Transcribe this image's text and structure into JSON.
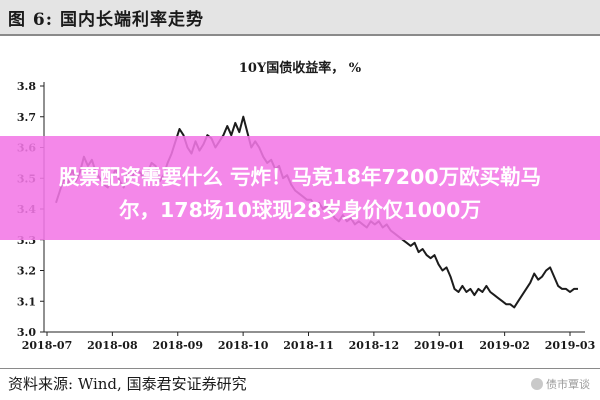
{
  "header": {
    "title": "图 6:  国内长端利率走势"
  },
  "banner": {
    "text": "股票配资需要什么 亏炸！马竞18年7200万欧买勒马\n尔，178场10球现28岁身价仅1000万"
  },
  "footer": {
    "source": "资料来源:   Wind,  国泰君安证券研究",
    "watermark": "债市覃谈"
  },
  "colors": {
    "line": "#1c1c1c",
    "banner": "#f378e6",
    "header_bg": "#e4e4e4",
    "axis": "#222222"
  },
  "icons": {
    "watermark": "wechat-icon"
  },
  "chart_data": {
    "type": "line",
    "title": "10Y国债收益率， %",
    "xlabel": "",
    "ylabel": "",
    "ylim": [
      3.0,
      3.8
    ],
    "y_ticks": [
      "3.0",
      "3.1",
      "3.2",
      "3.3",
      "3.4",
      "3.5",
      "3.6",
      "3.7",
      "3.8"
    ],
    "x_ticks": [
      "2018-07",
      "2018-08",
      "2018-09",
      "2018-10",
      "2018-11",
      "2018-12",
      "2019-01",
      "2019-02",
      "2019-03"
    ],
    "grid": false,
    "legend": "none",
    "series": [
      {
        "values": [
          3.42,
          3.46,
          3.5,
          3.48,
          3.53,
          3.49,
          3.52,
          3.57,
          3.54,
          3.56,
          3.52,
          3.5,
          3.48,
          3.47,
          3.5,
          3.53,
          3.49,
          3.47,
          3.52,
          3.5,
          3.53,
          3.52,
          3.5,
          3.52,
          3.55,
          3.54,
          3.49,
          3.51,
          3.55,
          3.58,
          3.62,
          3.66,
          3.64,
          3.6,
          3.58,
          3.62,
          3.59,
          3.61,
          3.64,
          3.63,
          3.6,
          3.62,
          3.64,
          3.67,
          3.64,
          3.68,
          3.65,
          3.7,
          3.65,
          3.6,
          3.62,
          3.6,
          3.57,
          3.55,
          3.56,
          3.53,
          3.54,
          3.5,
          3.51,
          3.48,
          3.46,
          3.45,
          3.44,
          3.43,
          3.43,
          3.41,
          3.42,
          3.4,
          3.41,
          3.39,
          3.37,
          3.36,
          3.38,
          3.36,
          3.37,
          3.35,
          3.36,
          3.35,
          3.34,
          3.36,
          3.35,
          3.36,
          3.34,
          3.35,
          3.33,
          3.32,
          3.31,
          3.3,
          3.29,
          3.28,
          3.29,
          3.26,
          3.27,
          3.25,
          3.24,
          3.25,
          3.22,
          3.2,
          3.21,
          3.18,
          3.14,
          3.13,
          3.15,
          3.13,
          3.14,
          3.12,
          3.14,
          3.13,
          3.15,
          3.13,
          3.12,
          3.11,
          3.1,
          3.09,
          3.09,
          3.08,
          3.1,
          3.12,
          3.14,
          3.16,
          3.19,
          3.17,
          3.18,
          3.2,
          3.21,
          3.18,
          3.15,
          3.14,
          3.14,
          3.13,
          3.14,
          3.14
        ]
      }
    ]
  }
}
